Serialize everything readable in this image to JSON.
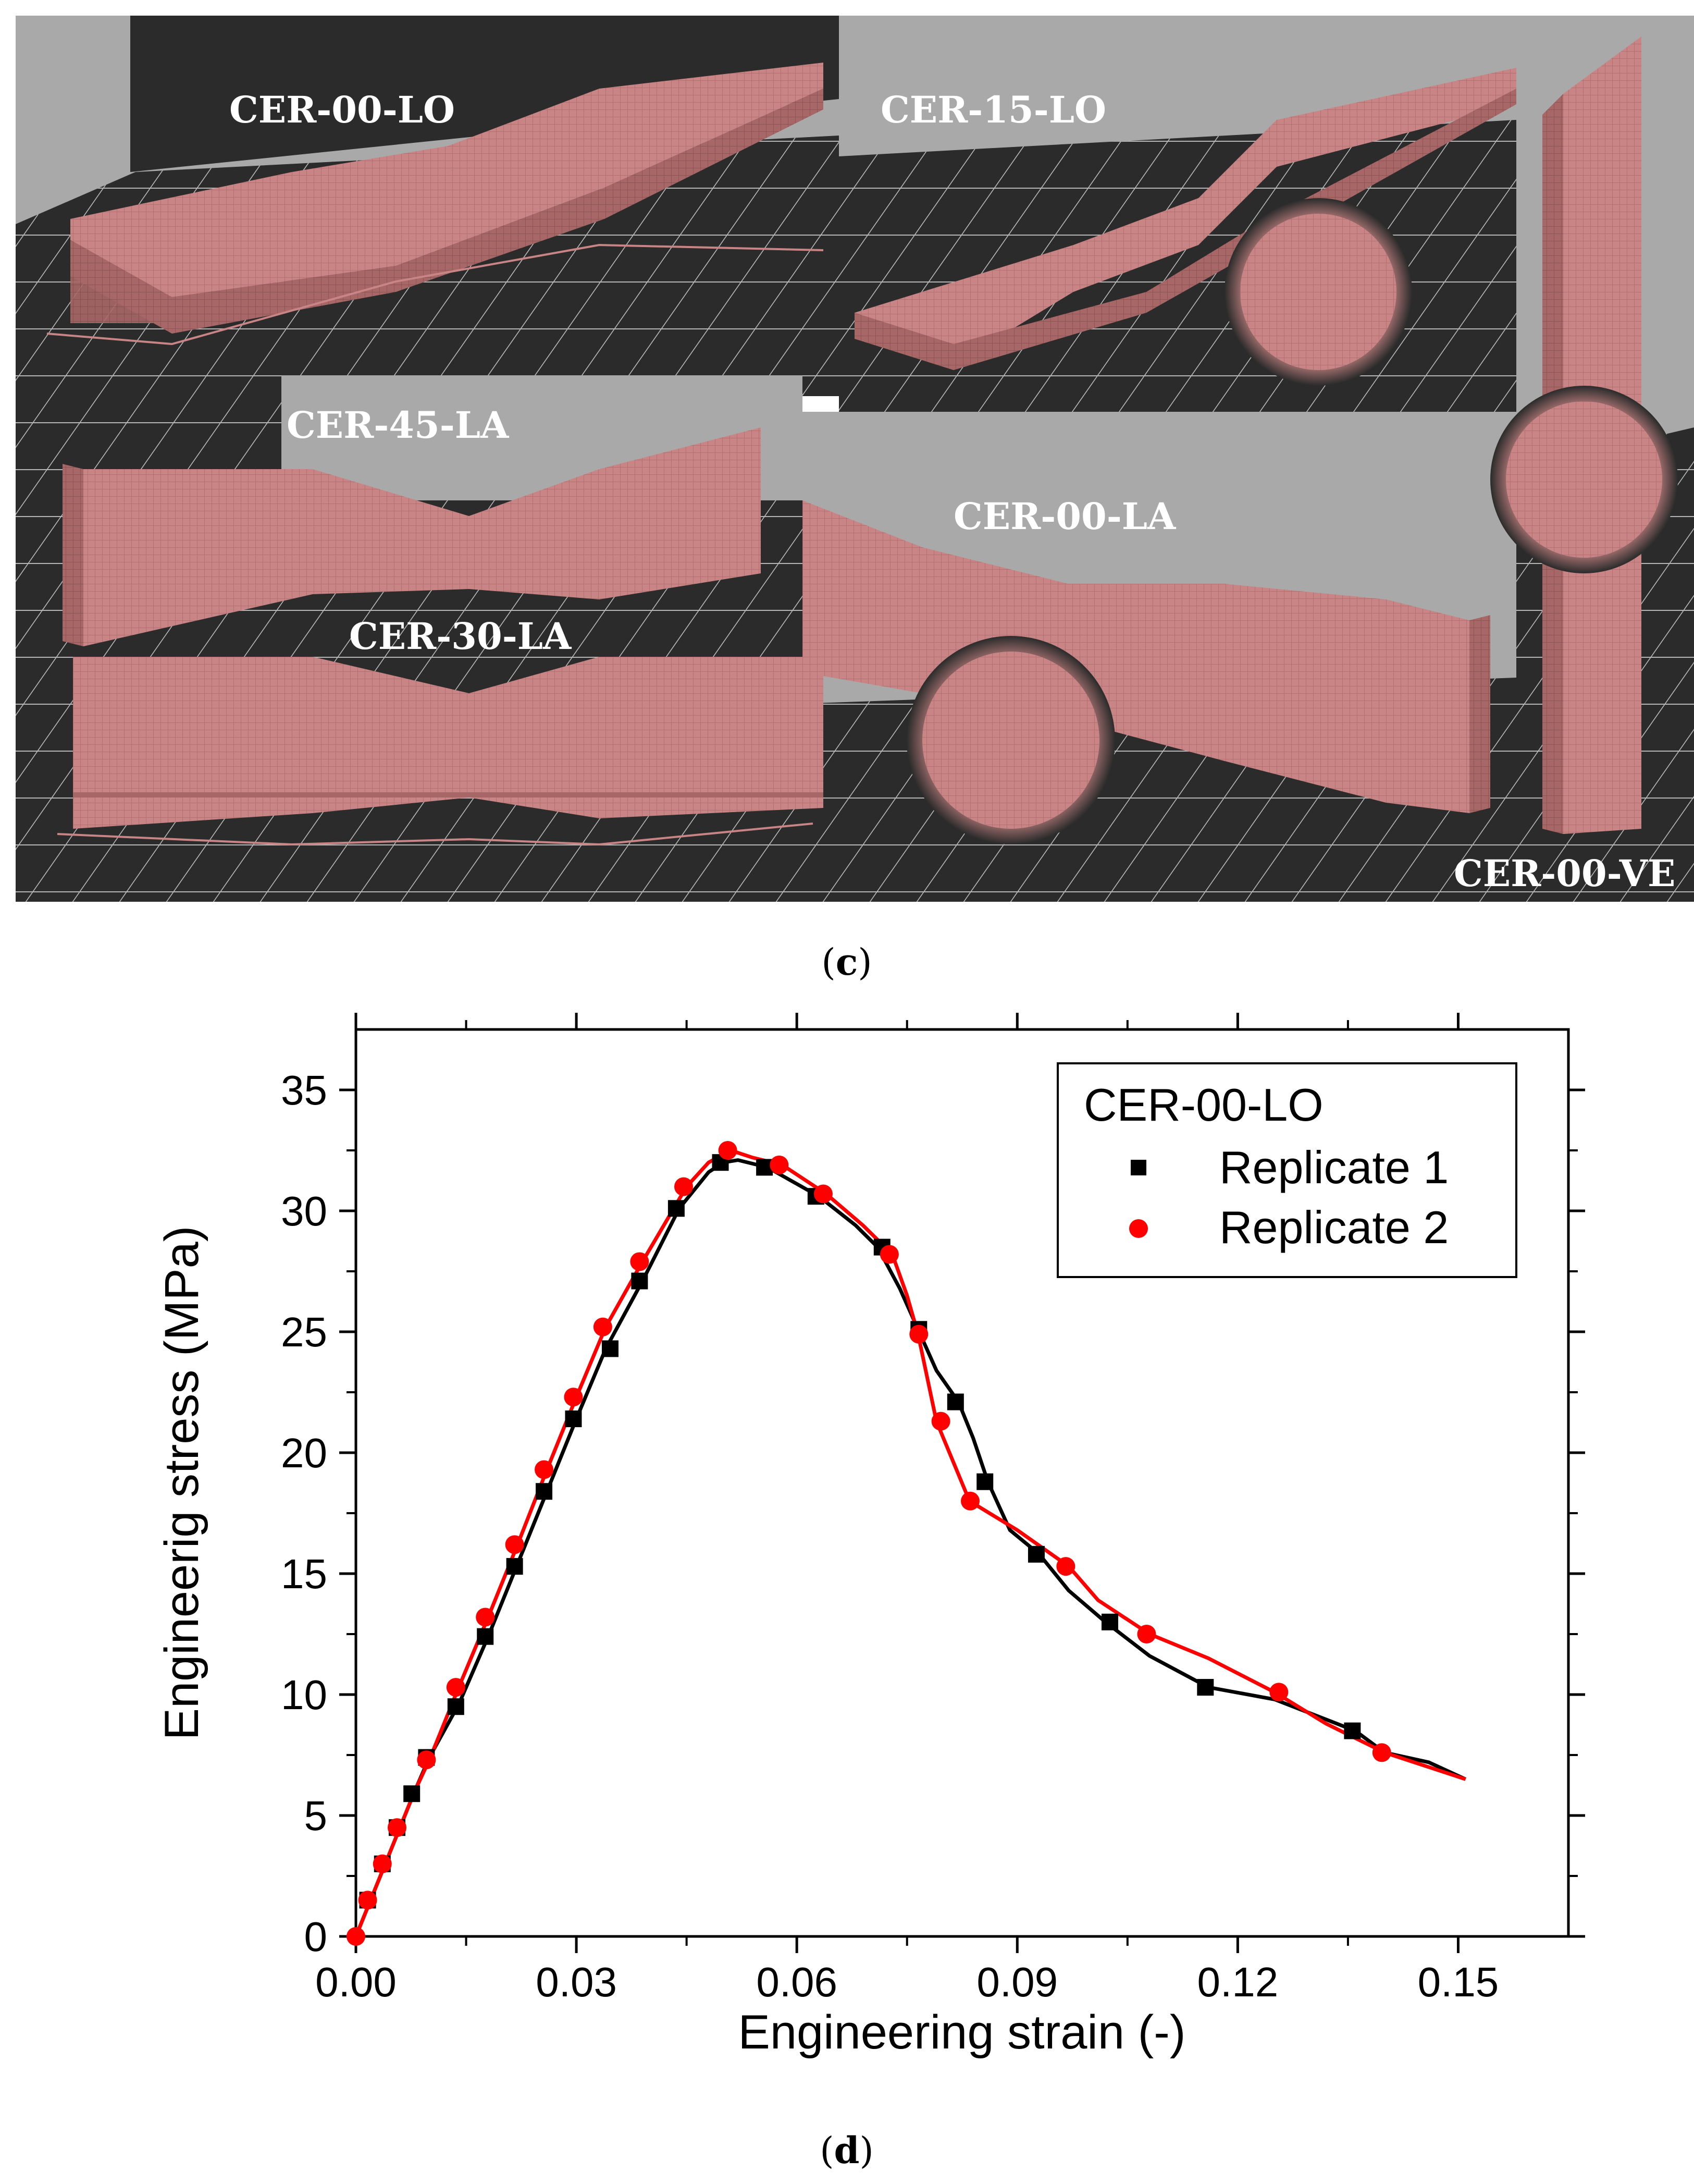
{
  "panel_c": {
    "caption_open": "(",
    "caption_letter": "c",
    "caption_close": ")",
    "specimen_labels": {
      "cer_00_lo": "CER-00-LO",
      "cer_15_lo": "CER-15-LO",
      "cer_45_la": "CER-45-LA",
      "cer_30_la": "CER-30-LA",
      "cer_00_la": "CER-00-LA",
      "cer_00_ve": "CER-00-VE"
    },
    "colors": {
      "specimen": "#c98585",
      "build_plate": "#2b2b2b",
      "backdrop": "#a9a9a9",
      "grid": "#d9d9d9",
      "label": "#ffffff"
    }
  },
  "panel_d": {
    "caption_open": "(",
    "caption_letter": "d",
    "caption_close": ")"
  },
  "chart_data": {
    "type": "line",
    "title": "",
    "xlabel": "Engineering strain (-)",
    "ylabel": "Engineerig stress (MPa)",
    "xlim": [
      0,
      0.165
    ],
    "ylim": [
      0,
      37.5
    ],
    "xticks": [
      "0.00",
      "0.03",
      "0.06",
      "0.09",
      "0.12",
      "0.15"
    ],
    "xtick_values": [
      0,
      0.03,
      0.06,
      0.09,
      0.12,
      0.15
    ],
    "yticks": [
      "0",
      "5",
      "10",
      "15",
      "20",
      "25",
      "30",
      "35"
    ],
    "ytick_values": [
      0,
      5,
      10,
      15,
      20,
      25,
      30,
      35
    ],
    "grid": false,
    "legend": {
      "title": "CER-00-LO",
      "position": "top-right"
    },
    "series": [
      {
        "name": "Replicate 1",
        "color": "#000000",
        "marker": "square",
        "curve": [
          [
            0,
            0
          ],
          [
            0.002,
            1.5
          ],
          [
            0.004,
            3.0
          ],
          [
            0.006,
            4.5
          ],
          [
            0.008,
            6.0
          ],
          [
            0.01,
            7.4
          ],
          [
            0.014,
            9.6
          ],
          [
            0.018,
            12.4
          ],
          [
            0.022,
            15.4
          ],
          [
            0.026,
            18.4
          ],
          [
            0.03,
            21.4
          ],
          [
            0.034,
            24.3
          ],
          [
            0.039,
            27.1
          ],
          [
            0.044,
            30.1
          ],
          [
            0.048,
            31.6
          ],
          [
            0.05,
            32.0
          ],
          [
            0.052,
            32.1
          ],
          [
            0.056,
            31.8
          ],
          [
            0.063,
            30.6
          ],
          [
            0.068,
            29.4
          ],
          [
            0.071,
            28.5
          ],
          [
            0.074,
            26.8
          ],
          [
            0.0765,
            25.1
          ],
          [
            0.079,
            23.4
          ],
          [
            0.082,
            22.1
          ],
          [
            0.084,
            20.6
          ],
          [
            0.086,
            18.8
          ],
          [
            0.089,
            16.8
          ],
          [
            0.093,
            15.8
          ],
          [
            0.097,
            14.3
          ],
          [
            0.102,
            13.0
          ],
          [
            0.108,
            11.6
          ],
          [
            0.116,
            10.3
          ],
          [
            0.125,
            9.8
          ],
          [
            0.136,
            8.5
          ],
          [
            0.14,
            7.6
          ],
          [
            0.146,
            7.2
          ],
          [
            0.151,
            6.5
          ]
        ],
        "markers": [
          [
            0.0016,
            1.5
          ],
          [
            0.0036,
            3.0
          ],
          [
            0.0056,
            4.5
          ],
          [
            0.0076,
            5.9
          ],
          [
            0.0096,
            7.4
          ],
          [
            0.0136,
            9.5
          ],
          [
            0.0176,
            12.4
          ],
          [
            0.0216,
            15.3
          ],
          [
            0.0256,
            18.4
          ],
          [
            0.0296,
            21.4
          ],
          [
            0.0346,
            24.3
          ],
          [
            0.0386,
            27.1
          ],
          [
            0.0436,
            30.1
          ],
          [
            0.0496,
            32.0
          ],
          [
            0.0556,
            31.8
          ],
          [
            0.0626,
            30.6
          ],
          [
            0.0716,
            28.5
          ],
          [
            0.0766,
            25.1
          ],
          [
            0.0816,
            22.1
          ],
          [
            0.0856,
            18.8
          ],
          [
            0.0926,
            15.8
          ],
          [
            0.1026,
            13.0
          ],
          [
            0.1156,
            10.3
          ],
          [
            0.1356,
            8.5
          ]
        ]
      },
      {
        "name": "Replicate 2",
        "color": "#ff0000",
        "marker": "circle",
        "curve": [
          [
            0,
            0
          ],
          [
            0.002,
            1.5
          ],
          [
            0.004,
            3.0
          ],
          [
            0.006,
            4.5
          ],
          [
            0.008,
            6.0
          ],
          [
            0.01,
            7.3
          ],
          [
            0.014,
            10.3
          ],
          [
            0.018,
            13.2
          ],
          [
            0.022,
            16.2
          ],
          [
            0.026,
            19.3
          ],
          [
            0.03,
            22.3
          ],
          [
            0.034,
            25.2
          ],
          [
            0.039,
            27.9
          ],
          [
            0.045,
            31.0
          ],
          [
            0.048,
            32.0
          ],
          [
            0.051,
            32.5
          ],
          [
            0.054,
            32.2
          ],
          [
            0.058,
            31.9
          ],
          [
            0.064,
            30.7
          ],
          [
            0.069,
            29.4
          ],
          [
            0.073,
            28.2
          ],
          [
            0.075,
            26.5
          ],
          [
            0.0765,
            24.9
          ],
          [
            0.079,
            21.3
          ],
          [
            0.0835,
            18.0
          ],
          [
            0.09,
            16.8
          ],
          [
            0.097,
            15.3
          ],
          [
            0.101,
            13.9
          ],
          [
            0.108,
            12.5
          ],
          [
            0.116,
            11.5
          ],
          [
            0.125,
            10.1
          ],
          [
            0.132,
            8.8
          ],
          [
            0.14,
            7.6
          ],
          [
            0.146,
            7.0
          ],
          [
            0.151,
            6.5
          ]
        ],
        "markers": [
          [
            0,
            0.0
          ],
          [
            0.0016,
            1.5
          ],
          [
            0.0036,
            3.0
          ],
          [
            0.0056,
            4.5
          ],
          [
            0.0096,
            7.3
          ],
          [
            0.0136,
            10.3
          ],
          [
            0.0176,
            13.2
          ],
          [
            0.0216,
            16.2
          ],
          [
            0.0256,
            19.3
          ],
          [
            0.0296,
            22.3
          ],
          [
            0.0336,
            25.2
          ],
          [
            0.0386,
            27.9
          ],
          [
            0.0446,
            31.0
          ],
          [
            0.0506,
            32.5
          ],
          [
            0.0576,
            31.9
          ],
          [
            0.0636,
            30.7
          ],
          [
            0.0726,
            28.2
          ],
          [
            0.0766,
            24.9
          ],
          [
            0.0796,
            21.3
          ],
          [
            0.0836,
            18.0
          ],
          [
            0.0966,
            15.3
          ],
          [
            0.1076,
            12.5
          ],
          [
            0.1256,
            10.1
          ],
          [
            0.1396,
            7.6
          ]
        ]
      }
    ]
  }
}
